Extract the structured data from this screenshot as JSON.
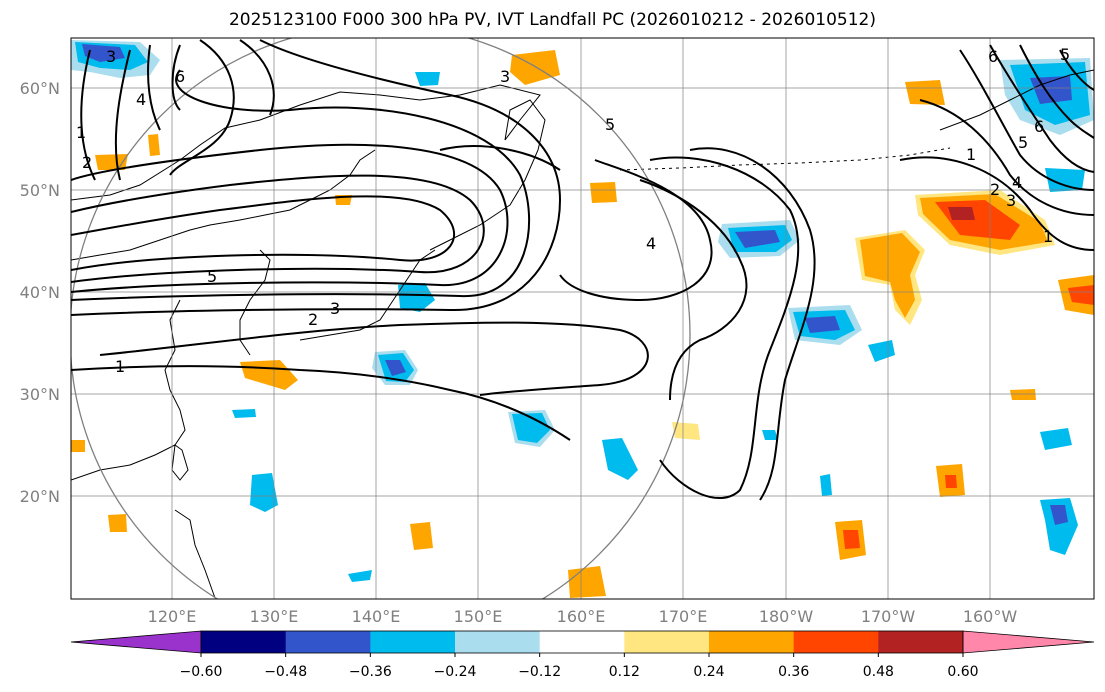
{
  "title": "2025123100 F000 300 hPa PV, IVT Landfall PC (2026010212 - 2026010512)",
  "map": {
    "lat_labels": [
      "60°N",
      "50°N",
      "40°N",
      "30°N",
      "20°N"
    ],
    "lon_labels": [
      "120°E",
      "130°E",
      "140°E",
      "150°E",
      "160°E",
      "170°E",
      "180°W",
      "170°W",
      "160°W"
    ],
    "contour_labels": [
      "1",
      "2",
      "3",
      "4",
      "5",
      "6"
    ],
    "fill_colors": {
      "purple": "#9933cc",
      "navy": "#000080",
      "royal": "#3355cc",
      "cyan": "#00bbee",
      "light_cyan": "#aaddee",
      "yellow": "#ffe680",
      "orange": "#ffa500",
      "red_orange": "#ff4500",
      "dark_red": "#b22222",
      "pink": "#ff88aa"
    }
  },
  "colorbar": {
    "labels": [
      "−0.60",
      "−0.48",
      "−0.36",
      "−0.24",
      "−0.12",
      "0.12",
      "0.24",
      "0.36",
      "0.48",
      "0.60"
    ],
    "colors": [
      "#9933cc",
      "#000080",
      "#3355cc",
      "#00bbee",
      "#aaddee",
      "#ffffff",
      "#ffe680",
      "#ffa500",
      "#ff4500",
      "#b22222",
      "#ff88aa"
    ]
  }
}
